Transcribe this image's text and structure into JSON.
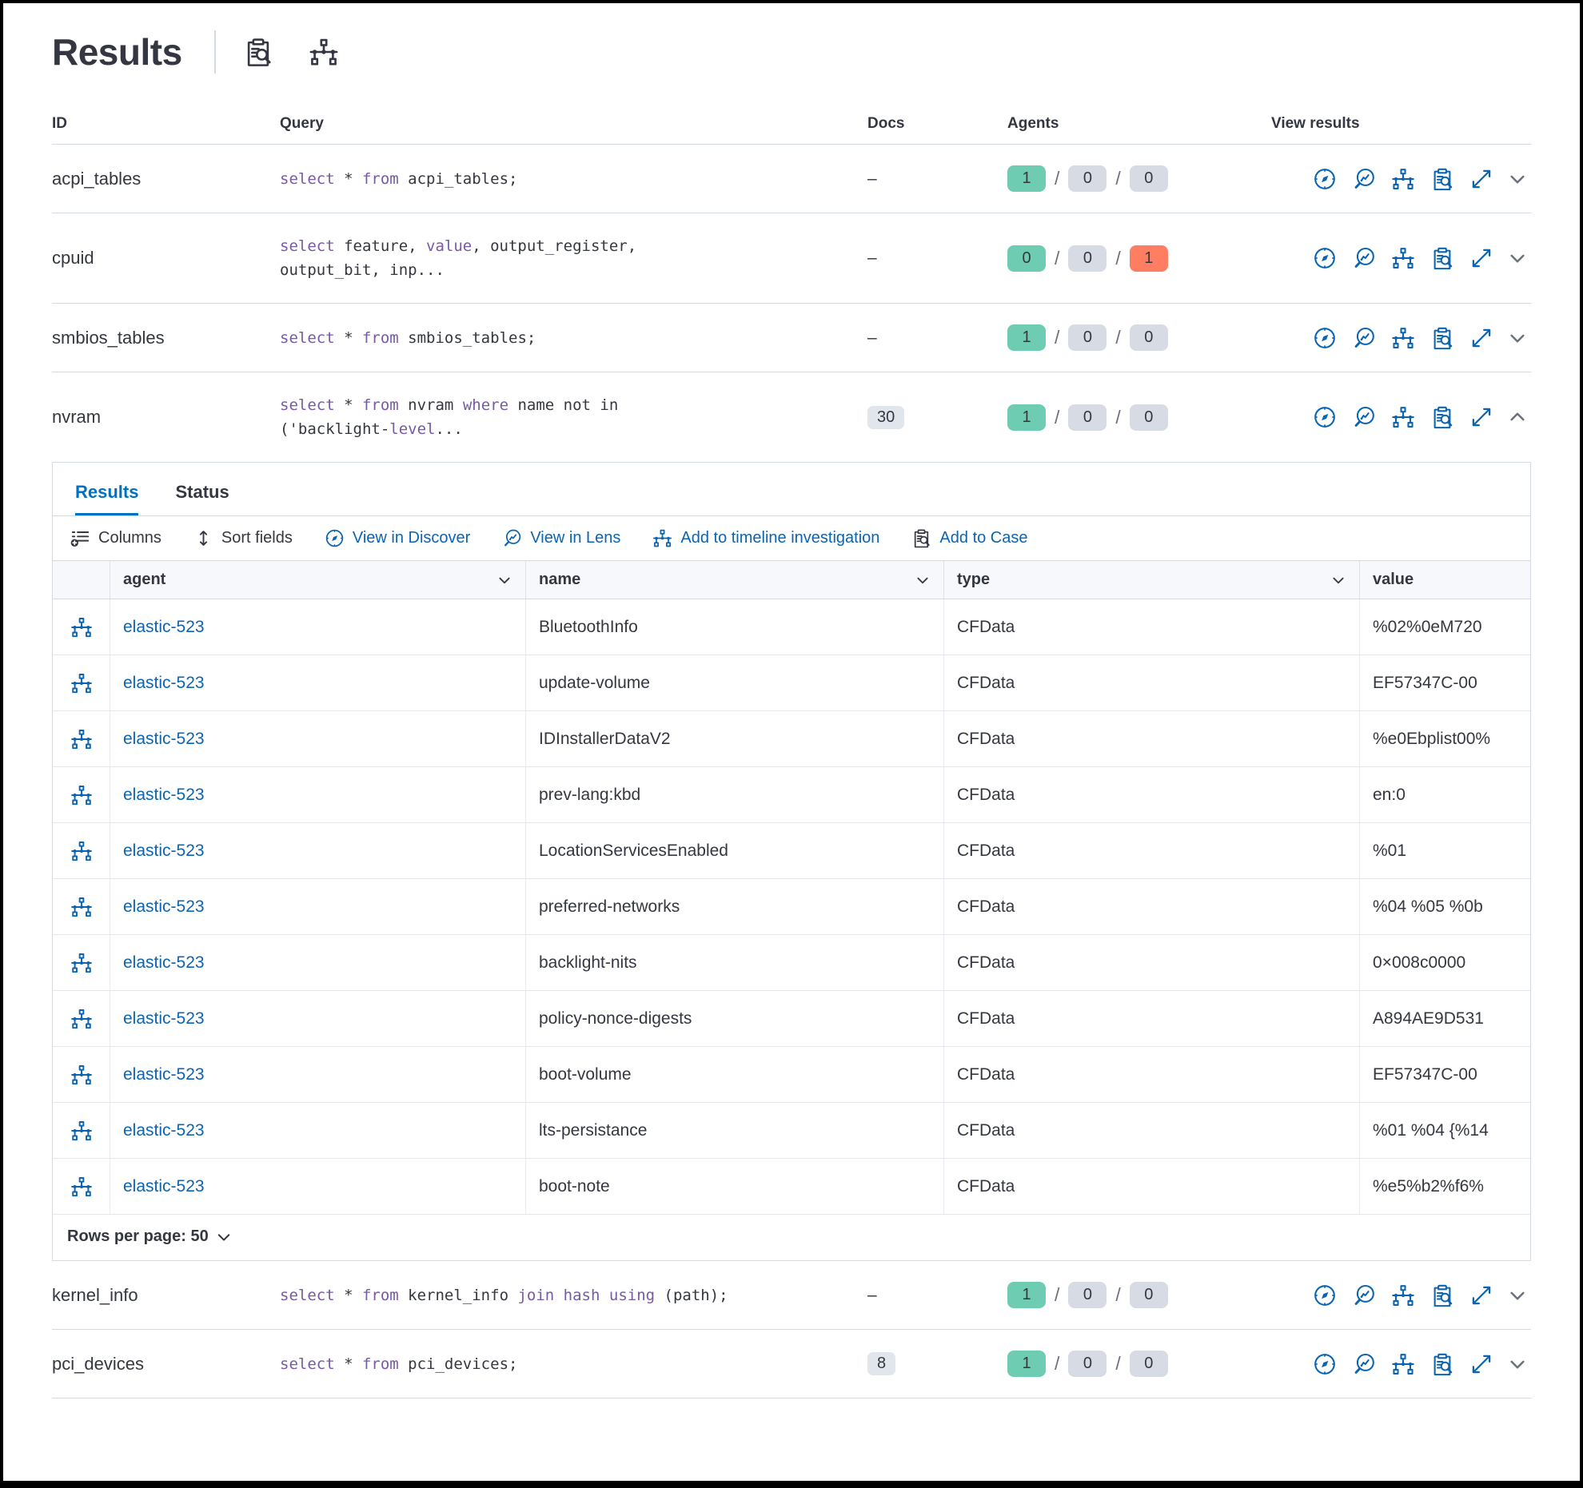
{
  "colors": {
    "primary_blue": "#0b64b2",
    "tab_active_blue": "#0071c2",
    "keyword_purple": "#7759a4",
    "badge_green": "#6dccb1",
    "badge_gray": "#d6dbe4",
    "badge_red": "#ff7e62",
    "text_dark": "#343741",
    "border_light": "#d3dae6"
  },
  "page": {
    "title": "Results",
    "header_icons": [
      "inspect-icon",
      "timeline-icon"
    ]
  },
  "query_table": {
    "columns": {
      "id": "ID",
      "query": "Query",
      "docs": "Docs",
      "agents": "Agents",
      "view_results": "View results"
    },
    "action_icons": [
      "discover",
      "lens",
      "timeline",
      "inspect",
      "expand"
    ],
    "rows": [
      {
        "id": "acpi_tables",
        "query": [
          {
            "t": "select",
            "kw": true
          },
          {
            "t": " * ",
            "kw": false
          },
          {
            "t": "from",
            "kw": true
          },
          {
            "t": " acpi_tables;",
            "kw": false
          }
        ],
        "docs": "–",
        "docs_badge": false,
        "agents": [
          {
            "value": "1",
            "variant": "green"
          },
          {
            "value": "0",
            "variant": "gray"
          },
          {
            "value": "0",
            "variant": "gray"
          }
        ],
        "expanded": false
      },
      {
        "id": "cpuid",
        "query": [
          {
            "t": "select",
            "kw": true
          },
          {
            "t": " feature, ",
            "kw": false
          },
          {
            "t": "value",
            "kw": true
          },
          {
            "t": ", output_register,\noutput_bit, inp...",
            "kw": false
          }
        ],
        "docs": "–",
        "docs_badge": false,
        "agents": [
          {
            "value": "0",
            "variant": "green"
          },
          {
            "value": "0",
            "variant": "gray"
          },
          {
            "value": "1",
            "variant": "red"
          }
        ],
        "expanded": false
      },
      {
        "id": "smbios_tables",
        "query": [
          {
            "t": "select",
            "kw": true
          },
          {
            "t": " * ",
            "kw": false
          },
          {
            "t": "from",
            "kw": true
          },
          {
            "t": " smbios_tables;",
            "kw": false
          }
        ],
        "docs": "–",
        "docs_badge": false,
        "agents": [
          {
            "value": "1",
            "variant": "green"
          },
          {
            "value": "0",
            "variant": "gray"
          },
          {
            "value": "0",
            "variant": "gray"
          }
        ],
        "expanded": false
      },
      {
        "id": "nvram",
        "query": [
          {
            "t": "select",
            "kw": true
          },
          {
            "t": " * ",
            "kw": false
          },
          {
            "t": "from",
            "kw": true
          },
          {
            "t": " nvram ",
            "kw": false
          },
          {
            "t": "where",
            "kw": true
          },
          {
            "t": " name not in\n('backlight-",
            "kw": false
          },
          {
            "t": "level",
            "kw": true
          },
          {
            "t": "...",
            "kw": false
          }
        ],
        "docs": "30",
        "docs_badge": true,
        "agents": [
          {
            "value": "1",
            "variant": "green"
          },
          {
            "value": "0",
            "variant": "gray"
          },
          {
            "value": "0",
            "variant": "gray"
          }
        ],
        "expanded": true
      },
      {
        "id": "kernel_info",
        "query": [
          {
            "t": "select",
            "kw": true
          },
          {
            "t": " * ",
            "kw": false
          },
          {
            "t": "from",
            "kw": true
          },
          {
            "t": " kernel_info ",
            "kw": false
          },
          {
            "t": "join",
            "kw": true
          },
          {
            "t": " ",
            "kw": false
          },
          {
            "t": "hash",
            "kw": true
          },
          {
            "t": " ",
            "kw": false
          },
          {
            "t": "using",
            "kw": true
          },
          {
            "t": " (path);",
            "kw": false
          }
        ],
        "docs": "–",
        "docs_badge": false,
        "agents": [
          {
            "value": "1",
            "variant": "green"
          },
          {
            "value": "0",
            "variant": "gray"
          },
          {
            "value": "0",
            "variant": "gray"
          }
        ],
        "expanded": false
      },
      {
        "id": "pci_devices",
        "query": [
          {
            "t": "select",
            "kw": true
          },
          {
            "t": " * ",
            "kw": false
          },
          {
            "t": "from",
            "kw": true
          },
          {
            "t": " pci_devices;",
            "kw": false
          }
        ],
        "docs": "8",
        "docs_badge": true,
        "agents": [
          {
            "value": "1",
            "variant": "green"
          },
          {
            "value": "0",
            "variant": "gray"
          },
          {
            "value": "0",
            "variant": "gray"
          }
        ],
        "expanded": false
      }
    ]
  },
  "expanded": {
    "tabs": [
      {
        "label": "Results",
        "active": true
      },
      {
        "label": "Status",
        "active": false
      }
    ],
    "toolbar": [
      {
        "label": "Columns",
        "icon": "columns",
        "style": "dark"
      },
      {
        "label": "Sort fields",
        "icon": "sort",
        "style": "dark"
      },
      {
        "label": "View in Discover",
        "icon": "discover",
        "style": "blue"
      },
      {
        "label": "View in Lens",
        "icon": "lens",
        "style": "blue"
      },
      {
        "label": "Add to timeline investigation",
        "icon": "timeline",
        "style": "blue"
      },
      {
        "label": "Add to Case",
        "icon": "inspect",
        "style": "blue-darkicon"
      }
    ],
    "grid": {
      "columns": [
        {
          "label": "agent",
          "chevron": true
        },
        {
          "label": "name",
          "chevron": true
        },
        {
          "label": "type",
          "chevron": true
        },
        {
          "label": "value",
          "chevron": false
        }
      ],
      "rows": [
        {
          "agent": "elastic-523",
          "name": "BluetoothInfo",
          "type": "CFData",
          "value": "%02%0eM720"
        },
        {
          "agent": "elastic-523",
          "name": "update-volume",
          "type": "CFData",
          "value": "EF57347C-00"
        },
        {
          "agent": "elastic-523",
          "name": "IDInstallerDataV2",
          "type": "CFData",
          "value": "%e0Ebplist00%"
        },
        {
          "agent": "elastic-523",
          "name": "prev-lang:kbd",
          "type": "CFData",
          "value": "en:0"
        },
        {
          "agent": "elastic-523",
          "name": "LocationServicesEnabled",
          "type": "CFData",
          "value": "%01"
        },
        {
          "agent": "elastic-523",
          "name": "preferred-networks",
          "type": "CFData",
          "value": "%04 %05 %0b"
        },
        {
          "agent": "elastic-523",
          "name": "backlight-nits",
          "type": "CFData",
          "value": "0×008c0000"
        },
        {
          "agent": "elastic-523",
          "name": "policy-nonce-digests",
          "type": "CFData",
          "value": "A894AE9D531"
        },
        {
          "agent": "elastic-523",
          "name": "boot-volume",
          "type": "CFData",
          "value": "EF57347C-00"
        },
        {
          "agent": "elastic-523",
          "name": "lts-persistance",
          "type": "CFData",
          "value": "%01 %04 {%14"
        },
        {
          "agent": "elastic-523",
          "name": "boot-note",
          "type": "CFData",
          "value": "%e5%b2%f6%"
        }
      ]
    },
    "footer": {
      "rows_per_page": "Rows per page: 50"
    }
  }
}
